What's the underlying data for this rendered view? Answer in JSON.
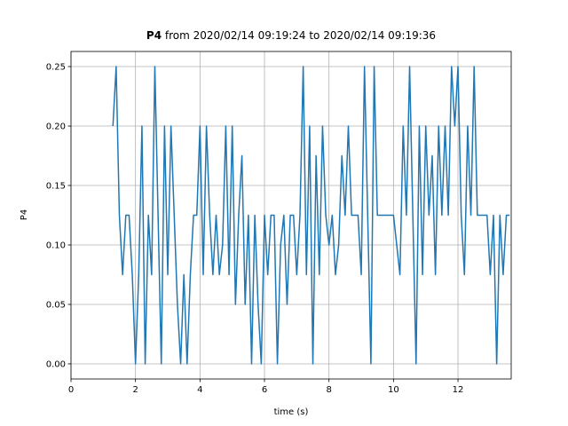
{
  "chart_data": {
    "type": "line",
    "title_bold": "P4",
    "title": "from 2020/02/14 09:19:24 to 2020/02/14 09:19:36",
    "xlabel": "time (s)",
    "ylabel": "P4",
    "xlim": [
      0,
      13.65
    ],
    "ylim": [
      -0.0127,
      0.2627
    ],
    "xticks": [
      0,
      2,
      4,
      6,
      8,
      10,
      12
    ],
    "yticks": [
      {
        "value": 0,
        "label": "0.00"
      },
      {
        "value": 0.05,
        "label": "0.05"
      },
      {
        "value": 0.1,
        "label": "0.10"
      },
      {
        "value": 0.15,
        "label": "0.15"
      },
      {
        "value": 0.2,
        "label": "0.20"
      },
      {
        "value": 0.25,
        "label": "0.25"
      }
    ],
    "grid": true,
    "color": "#1f77b4",
    "x": [
      1.3,
      1.4,
      1.5,
      1.6,
      1.7,
      1.8,
      1.9,
      2.0,
      2.1,
      2.2,
      2.3,
      2.4,
      2.5,
      2.6,
      2.7,
      2.8,
      2.9,
      3.0,
      3.1,
      3.2,
      3.3,
      3.4,
      3.5,
      3.6,
      3.7,
      3.8,
      3.9,
      4.0,
      4.1,
      4.2,
      4.3,
      4.4,
      4.5,
      4.6,
      4.7,
      4.8,
      4.9,
      5.0,
      5.1,
      5.2,
      5.3,
      5.4,
      5.5,
      5.6,
      5.7,
      5.8,
      5.9,
      6.0,
      6.1,
      6.2,
      6.3,
      6.4,
      6.5,
      6.6,
      6.7,
      6.8,
      6.9,
      7.0,
      7.1,
      7.2,
      7.3,
      7.4,
      7.5,
      7.6,
      7.7,
      7.8,
      7.9,
      8.0,
      8.1,
      8.2,
      8.3,
      8.4,
      8.5,
      8.6,
      8.7,
      8.8,
      8.9,
      9.0,
      9.1,
      9.2,
      9.3,
      9.4,
      9.5,
      9.6,
      9.7,
      9.8,
      9.9,
      10.0,
      10.1,
      10.2,
      10.3,
      10.4,
      10.5,
      10.6,
      10.7,
      10.8,
      10.9,
      11.0,
      11.1,
      11.2,
      11.3,
      11.4,
      11.5,
      11.6,
      11.7,
      11.8,
      11.9,
      12.0,
      12.1,
      12.2,
      12.3,
      12.4,
      12.5,
      12.6,
      12.7,
      12.8,
      12.9,
      13.0,
      13.1,
      13.2,
      13.3,
      13.4,
      13.5,
      13.6
    ],
    "values": [
      0.2,
      0.25,
      0.125,
      0.075,
      0.125,
      0.125,
      0.075,
      0,
      0.075,
      0.2,
      0,
      0.125,
      0.075,
      0.25,
      0.125,
      0,
      0.2,
      0.075,
      0.2,
      0.125,
      0.05,
      0,
      0.075,
      0,
      0.075,
      0.125,
      0.125,
      0.2,
      0.075,
      0.2,
      0.125,
      0.075,
      0.125,
      0.075,
      0.1,
      0.2,
      0.075,
      0.2,
      0.05,
      0.125,
      0.175,
      0.05,
      0.125,
      0,
      0.125,
      0.05,
      0,
      0.125,
      0.075,
      0.125,
      0.125,
      0,
      0.1,
      0.125,
      0.05,
      0.125,
      0.125,
      0.075,
      0.125,
      0.25,
      0.075,
      0.2,
      0,
      0.175,
      0.075,
      0.2,
      0.125,
      0.1,
      0.125,
      0.075,
      0.1,
      0.175,
      0.125,
      0.2,
      0.125,
      0.125,
      0.125,
      0.075,
      0.25,
      0.125,
      0,
      0.25,
      0.125,
      0.125,
      0.125,
      0.125,
      0.125,
      0.125,
      0.1,
      0.075,
      0.2,
      0.125,
      0.25,
      0.125,
      0,
      0.2,
      0.075,
      0.2,
      0.125,
      0.175,
      0.075,
      0.2,
      0.125,
      0.2,
      0.125,
      0.25,
      0.2,
      0.25,
      0.125,
      0.075,
      0.2,
      0.125,
      0.25,
      0.125,
      0.125,
      0.125,
      0.125,
      0.075,
      0.125,
      0,
      0.125,
      0.075,
      0.125,
      0.125
    ]
  }
}
